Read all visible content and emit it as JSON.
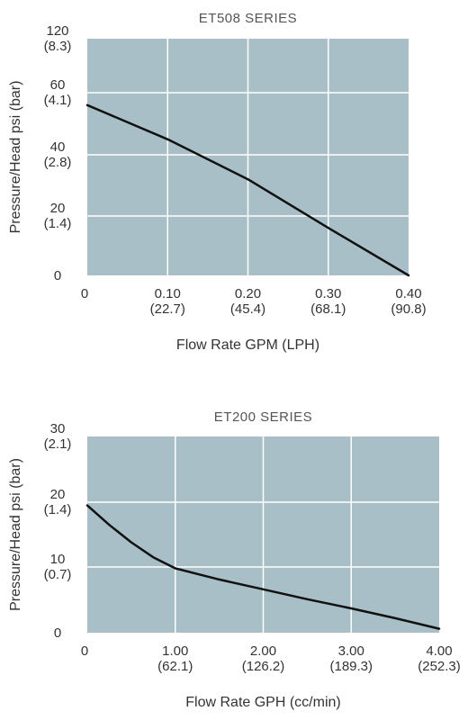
{
  "chart_data": [
    {
      "type": "line",
      "title": "ET508 SERIES",
      "xlabel": "Flow Rate GPM (LPH)",
      "ylabel": "Pressure/Head psi (bar)",
      "xlim": [
        0,
        0.4
      ],
      "x_ticks": [
        {
          "value": 0,
          "label": "0",
          "sub": ""
        },
        {
          "value": 0.1,
          "label": "0.10",
          "sub": "(22.7)"
        },
        {
          "value": 0.2,
          "label": "0.20",
          "sub": "(45.4)"
        },
        {
          "value": 0.3,
          "label": "0.30",
          "sub": "(68.1)"
        },
        {
          "value": 0.4,
          "label": "0.40",
          "sub": "(90.8)"
        }
      ],
      "y_ticks": [
        {
          "label": "0",
          "sub": ""
        },
        {
          "label": "20",
          "sub": "(1.4)"
        },
        {
          "label": "40",
          "sub": "(2.8)"
        },
        {
          "label": "60",
          "sub": "(4.1)"
        },
        {
          "label": "120",
          "sub": "(8.3)"
        }
      ],
      "y_axis_note": "non-uniform scale; gridlines at 0, 20, 40, 60, 120",
      "grid": true,
      "colors": {
        "plot_bg": "#a9bfc8",
        "grid": "#ffffff",
        "line": "#111111",
        "text": "#333333"
      },
      "series": [
        {
          "x": [
            0,
            0.1,
            0.2,
            0.3,
            0.4
          ],
          "y": [
            56,
            45,
            32,
            16,
            0
          ]
        }
      ]
    },
    {
      "type": "line",
      "title": "ET200 SERIES",
      "xlabel": "Flow Rate GPH (cc/min)",
      "ylabel": "Pressure/Head psi (bar)",
      "xlim": [
        0,
        4
      ],
      "ylim": [
        0,
        30
      ],
      "x_ticks": [
        {
          "value": 0,
          "label": "0",
          "sub": ""
        },
        {
          "value": 1,
          "label": "1.00",
          "sub": "(62.1)"
        },
        {
          "value": 2,
          "label": "2.00",
          "sub": "(126.2)"
        },
        {
          "value": 3,
          "label": "3.00",
          "sub": "(189.3)"
        },
        {
          "value": 4,
          "label": "4.00",
          "sub": "(252.3)"
        }
      ],
      "y_ticks": [
        {
          "label": "0",
          "sub": ""
        },
        {
          "label": "10",
          "sub": "(0.7)"
        },
        {
          "label": "20",
          "sub": "(1.4)"
        },
        {
          "label": "30",
          "sub": "(2.1)"
        }
      ],
      "grid": true,
      "colors": {
        "plot_bg": "#a9bfc8",
        "grid": "#ffffff",
        "line": "#111111",
        "text": "#333333"
      },
      "series": [
        {
          "x": [
            0,
            0.25,
            0.5,
            0.75,
            1.0,
            1.5,
            2.0,
            2.5,
            3.0,
            3.5,
            4.0
          ],
          "y": [
            19.5,
            16.5,
            13.8,
            11.5,
            9.8,
            8.1,
            6.6,
            5.1,
            3.7,
            2.2,
            0.6
          ]
        }
      ]
    }
  ]
}
